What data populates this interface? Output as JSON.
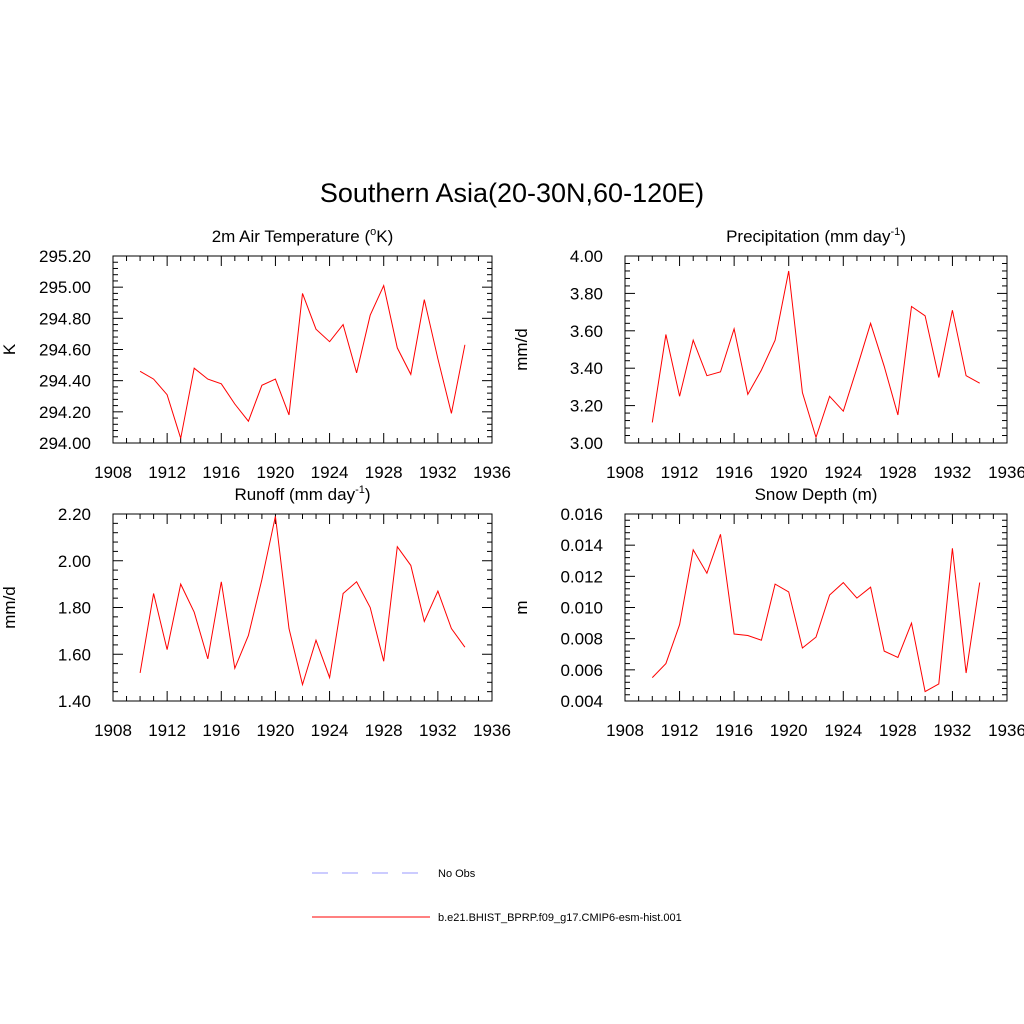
{
  "figure": {
    "title": "Southern Asia(20-30N,60-120E)"
  },
  "legend": {
    "entries": [
      {
        "label": "No Obs",
        "color": "#9999ff",
        "dash": true
      },
      {
        "label": "b.e21.BHIST_BPRP.f09_g17.CMIP6-esm-hist.001",
        "color": "#ff0000",
        "dash": false
      }
    ]
  },
  "chart_data": [
    {
      "type": "line",
      "title": "2m Air Temperature (°K)",
      "title_parts": {
        "pre": "2m Air Temperature (",
        "sup": "o",
        "post": "K)"
      },
      "ylabel": "K",
      "xlim": [
        1908,
        1936
      ],
      "x_ticks": [
        1908,
        1912,
        1916,
        1920,
        1924,
        1928,
        1932,
        1936
      ],
      "ylim": [
        294.0,
        295.2
      ],
      "y_ticks": [
        294.0,
        294.2,
        294.4,
        294.6,
        294.8,
        295.0,
        295.2
      ],
      "y_decimals": 2,
      "x": [
        1910,
        1911,
        1912,
        1913,
        1914,
        1915,
        1916,
        1917,
        1918,
        1919,
        1920,
        1921,
        1922,
        1923,
        1924,
        1925,
        1926,
        1927,
        1928,
        1929,
        1930,
        1931,
        1932,
        1933,
        1934
      ],
      "series": [
        {
          "name": "b.e21.BHIST_BPRP.f09_g17.CMIP6-esm-hist.001",
          "color": "#ff0000",
          "values": [
            294.46,
            294.41,
            294.31,
            294.03,
            294.48,
            294.41,
            294.38,
            294.25,
            294.14,
            294.37,
            294.41,
            294.18,
            294.96,
            294.73,
            294.65,
            294.76,
            294.45,
            294.82,
            295.01,
            294.61,
            294.44,
            294.92,
            294.54,
            294.19,
            294.63
          ]
        }
      ]
    },
    {
      "type": "line",
      "title": "Precipitation (mm day-1)",
      "title_parts": {
        "pre": "Precipitation (mm day",
        "sup": "-1",
        "post": ")"
      },
      "ylabel": "mm/d",
      "xlim": [
        1908,
        1936
      ],
      "x_ticks": [
        1908,
        1912,
        1916,
        1920,
        1924,
        1928,
        1932,
        1936
      ],
      "ylim": [
        3.0,
        4.0
      ],
      "y_ticks": [
        3.0,
        3.2,
        3.4,
        3.6,
        3.8,
        4.0
      ],
      "y_decimals": 2,
      "x": [
        1910,
        1911,
        1912,
        1913,
        1914,
        1915,
        1916,
        1917,
        1918,
        1919,
        1920,
        1921,
        1922,
        1923,
        1924,
        1925,
        1926,
        1927,
        1928,
        1929,
        1930,
        1931,
        1932,
        1933,
        1934
      ],
      "series": [
        {
          "name": "b.e21.BHIST_BPRP.f09_g17.CMIP6-esm-hist.001",
          "color": "#ff0000",
          "values": [
            3.11,
            3.58,
            3.25,
            3.55,
            3.36,
            3.38,
            3.61,
            3.26,
            3.39,
            3.55,
            3.92,
            3.27,
            3.03,
            3.25,
            3.17,
            3.4,
            3.64,
            3.41,
            3.15,
            3.73,
            3.68,
            3.35,
            3.71,
            3.36,
            3.32
          ]
        }
      ]
    },
    {
      "type": "line",
      "title": "Runoff (mm day-1)",
      "title_parts": {
        "pre": "Runoff (mm day",
        "sup": "-1",
        "post": ")"
      },
      "ylabel": "mm/d",
      "xlim": [
        1908,
        1936
      ],
      "x_ticks": [
        1908,
        1912,
        1916,
        1920,
        1924,
        1928,
        1932,
        1936
      ],
      "ylim": [
        1.4,
        2.2
      ],
      "y_ticks": [
        1.4,
        1.6,
        1.8,
        2.0,
        2.2
      ],
      "y_decimals": 2,
      "x": [
        1910,
        1911,
        1912,
        1913,
        1914,
        1915,
        1916,
        1917,
        1918,
        1919,
        1920,
        1921,
        1922,
        1923,
        1924,
        1925,
        1926,
        1927,
        1928,
        1929,
        1930,
        1931,
        1932,
        1933,
        1934
      ],
      "series": [
        {
          "name": "b.e21.BHIST_BPRP.f09_g17.CMIP6-esm-hist.001",
          "color": "#ff0000",
          "values": [
            1.52,
            1.86,
            1.62,
            1.9,
            1.78,
            1.58,
            1.91,
            1.54,
            1.68,
            1.92,
            2.19,
            1.71,
            1.47,
            1.66,
            1.5,
            1.86,
            1.91,
            1.8,
            1.57,
            2.06,
            1.98,
            1.74,
            1.87,
            1.71,
            1.63
          ]
        }
      ]
    },
    {
      "type": "line",
      "title": "Snow Depth (m)",
      "title_parts": {
        "pre": "Snow Depth (m)",
        "sup": "",
        "post": ""
      },
      "ylabel": "m",
      "xlim": [
        1908,
        1936
      ],
      "x_ticks": [
        1908,
        1912,
        1916,
        1920,
        1924,
        1928,
        1932,
        1936
      ],
      "ylim": [
        0.004,
        0.016
      ],
      "y_ticks": [
        0.004,
        0.006,
        0.008,
        0.01,
        0.012,
        0.014,
        0.016
      ],
      "y_decimals": 3,
      "x": [
        1910,
        1911,
        1912,
        1913,
        1914,
        1915,
        1916,
        1917,
        1918,
        1919,
        1920,
        1921,
        1922,
        1923,
        1924,
        1925,
        1926,
        1927,
        1928,
        1929,
        1930,
        1931,
        1932,
        1933,
        1934
      ],
      "series": [
        {
          "name": "b.e21.BHIST_BPRP.f09_g17.CMIP6-esm-hist.001",
          "color": "#ff0000",
          "values": [
            0.0055,
            0.0064,
            0.0089,
            0.0137,
            0.0122,
            0.0147,
            0.0083,
            0.0082,
            0.0079,
            0.0115,
            0.011,
            0.0074,
            0.0081,
            0.0108,
            0.0116,
            0.0106,
            0.0113,
            0.0072,
            0.0068,
            0.009,
            0.0046,
            0.0051,
            0.0138,
            0.0058,
            0.0116
          ]
        }
      ]
    }
  ]
}
